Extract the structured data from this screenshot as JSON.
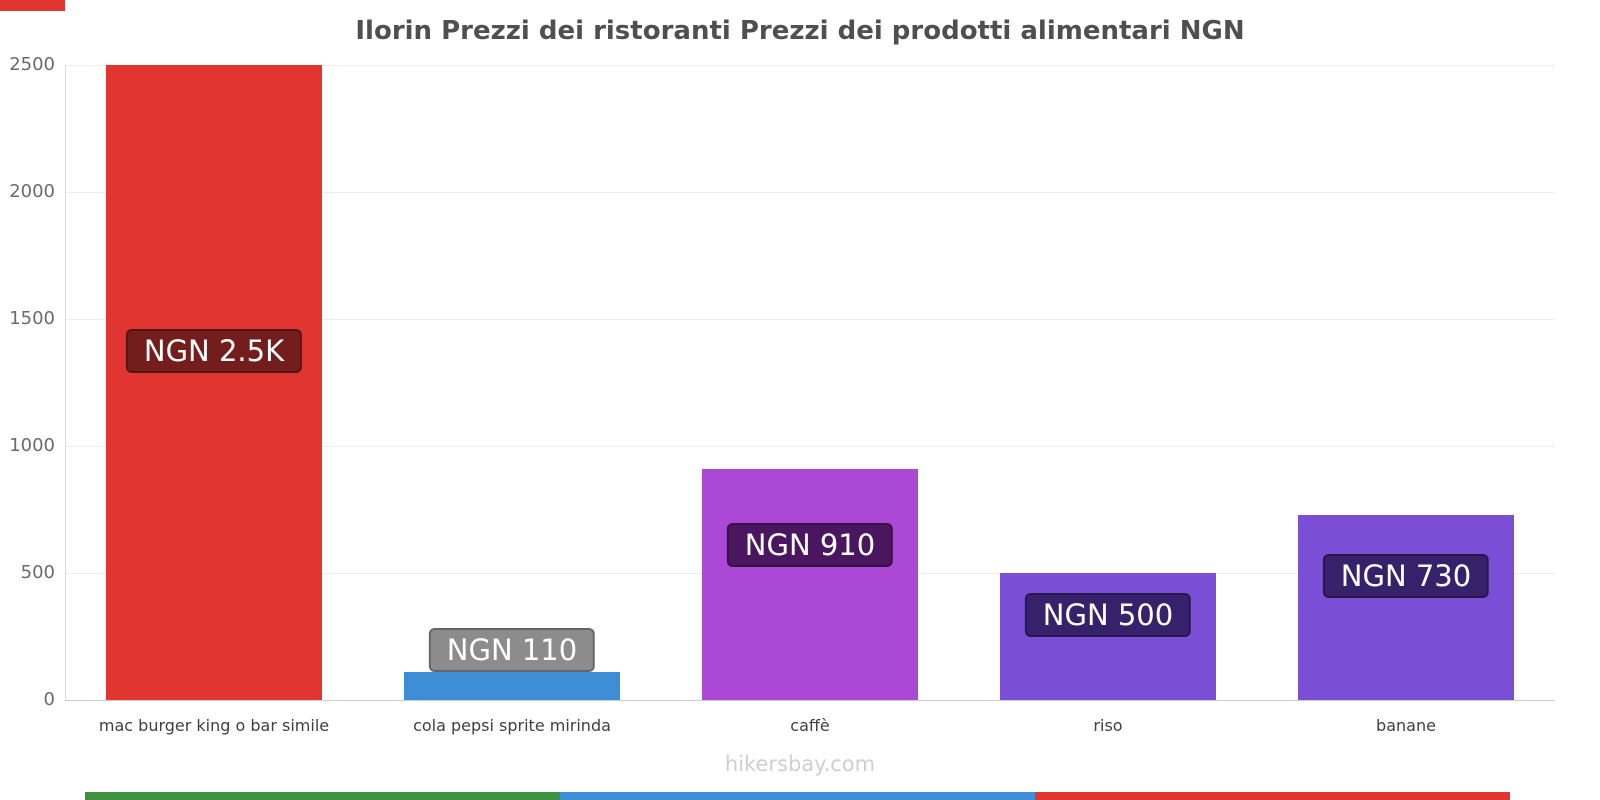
{
  "title": "Ilorin Prezzi dei ristoranti Prezzi dei prodotti alimentari NGN",
  "footer": "hikersbay.com",
  "chart_data": {
    "type": "bar",
    "title": "Ilorin Prezzi dei ristoranti Prezzi dei prodotti alimentari NGN",
    "categories": [
      "mac burger king o bar simile",
      "cola pepsi sprite mirinda",
      "caffè",
      "riso",
      "banane"
    ],
    "values": [
      2500,
      110,
      910,
      500,
      730
    ],
    "value_labels": [
      "NGN 2.5K",
      "NGN 110",
      "NGN 910",
      "NGN 500",
      "NGN 730"
    ],
    "bar_colors": [
      "#e03531",
      "#3d8ed7",
      "#ab49d6",
      "#7a4fd6",
      "#7a4fd6"
    ],
    "label_bg_colors": [
      "#741d1d",
      "#8c8c8c",
      "#4a1660",
      "#37216b",
      "#37216b"
    ],
    "xlabel": "",
    "ylabel": "",
    "ylim": [
      0,
      2500
    ],
    "yticks": [
      0,
      500,
      1000,
      1500,
      2000,
      2500
    ],
    "grid": true,
    "legend": "none"
  },
  "decor": {
    "top_left_color": "#e03531",
    "bottom_segment_colors": [
      "#3f9142",
      "#3d8ed7",
      "#e03531"
    ]
  }
}
